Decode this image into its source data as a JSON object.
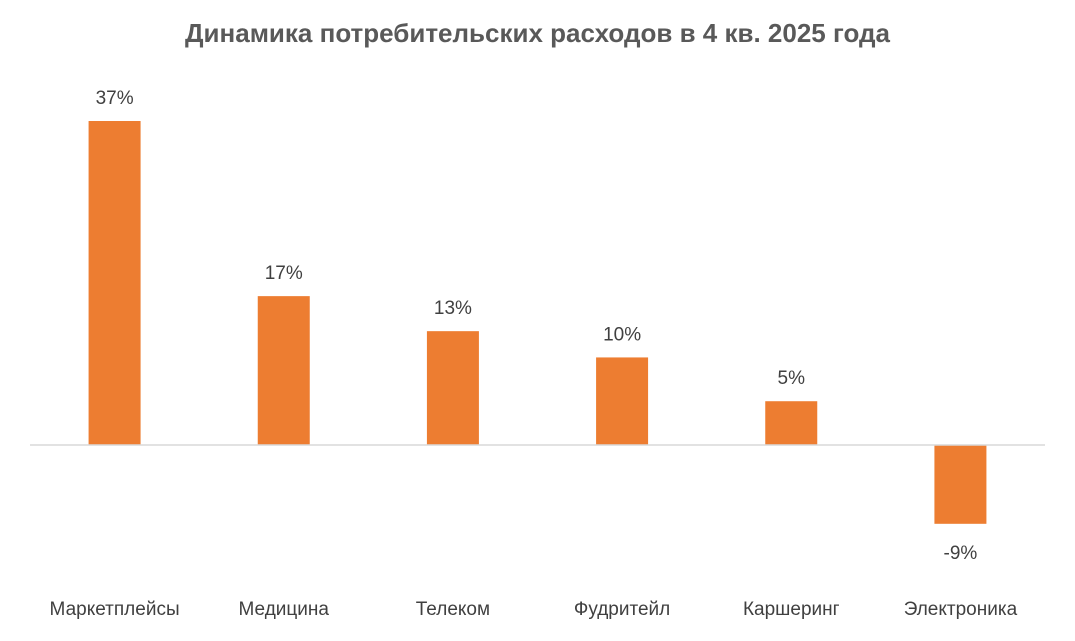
{
  "chart_data": {
    "type": "bar",
    "title": "Динамика потребительских расходов в 4 кв. 2025 года",
    "categories": [
      "Маркетплейсы",
      "Медицина",
      "Телеком",
      "Фудритейл",
      "Каршеринг",
      "Электроника"
    ],
    "values": [
      37,
      17,
      13,
      10,
      5,
      -9
    ],
    "data_labels": [
      "37%",
      "17%",
      "13%",
      "10%",
      "5%",
      "-9%"
    ],
    "unit": "%",
    "xlabel": "",
    "ylabel": "",
    "ylim": [
      -9,
      37
    ],
    "grid": false,
    "legend": "none",
    "bar_color": "#ED7D31",
    "axis_color": "#D9D9D9"
  }
}
